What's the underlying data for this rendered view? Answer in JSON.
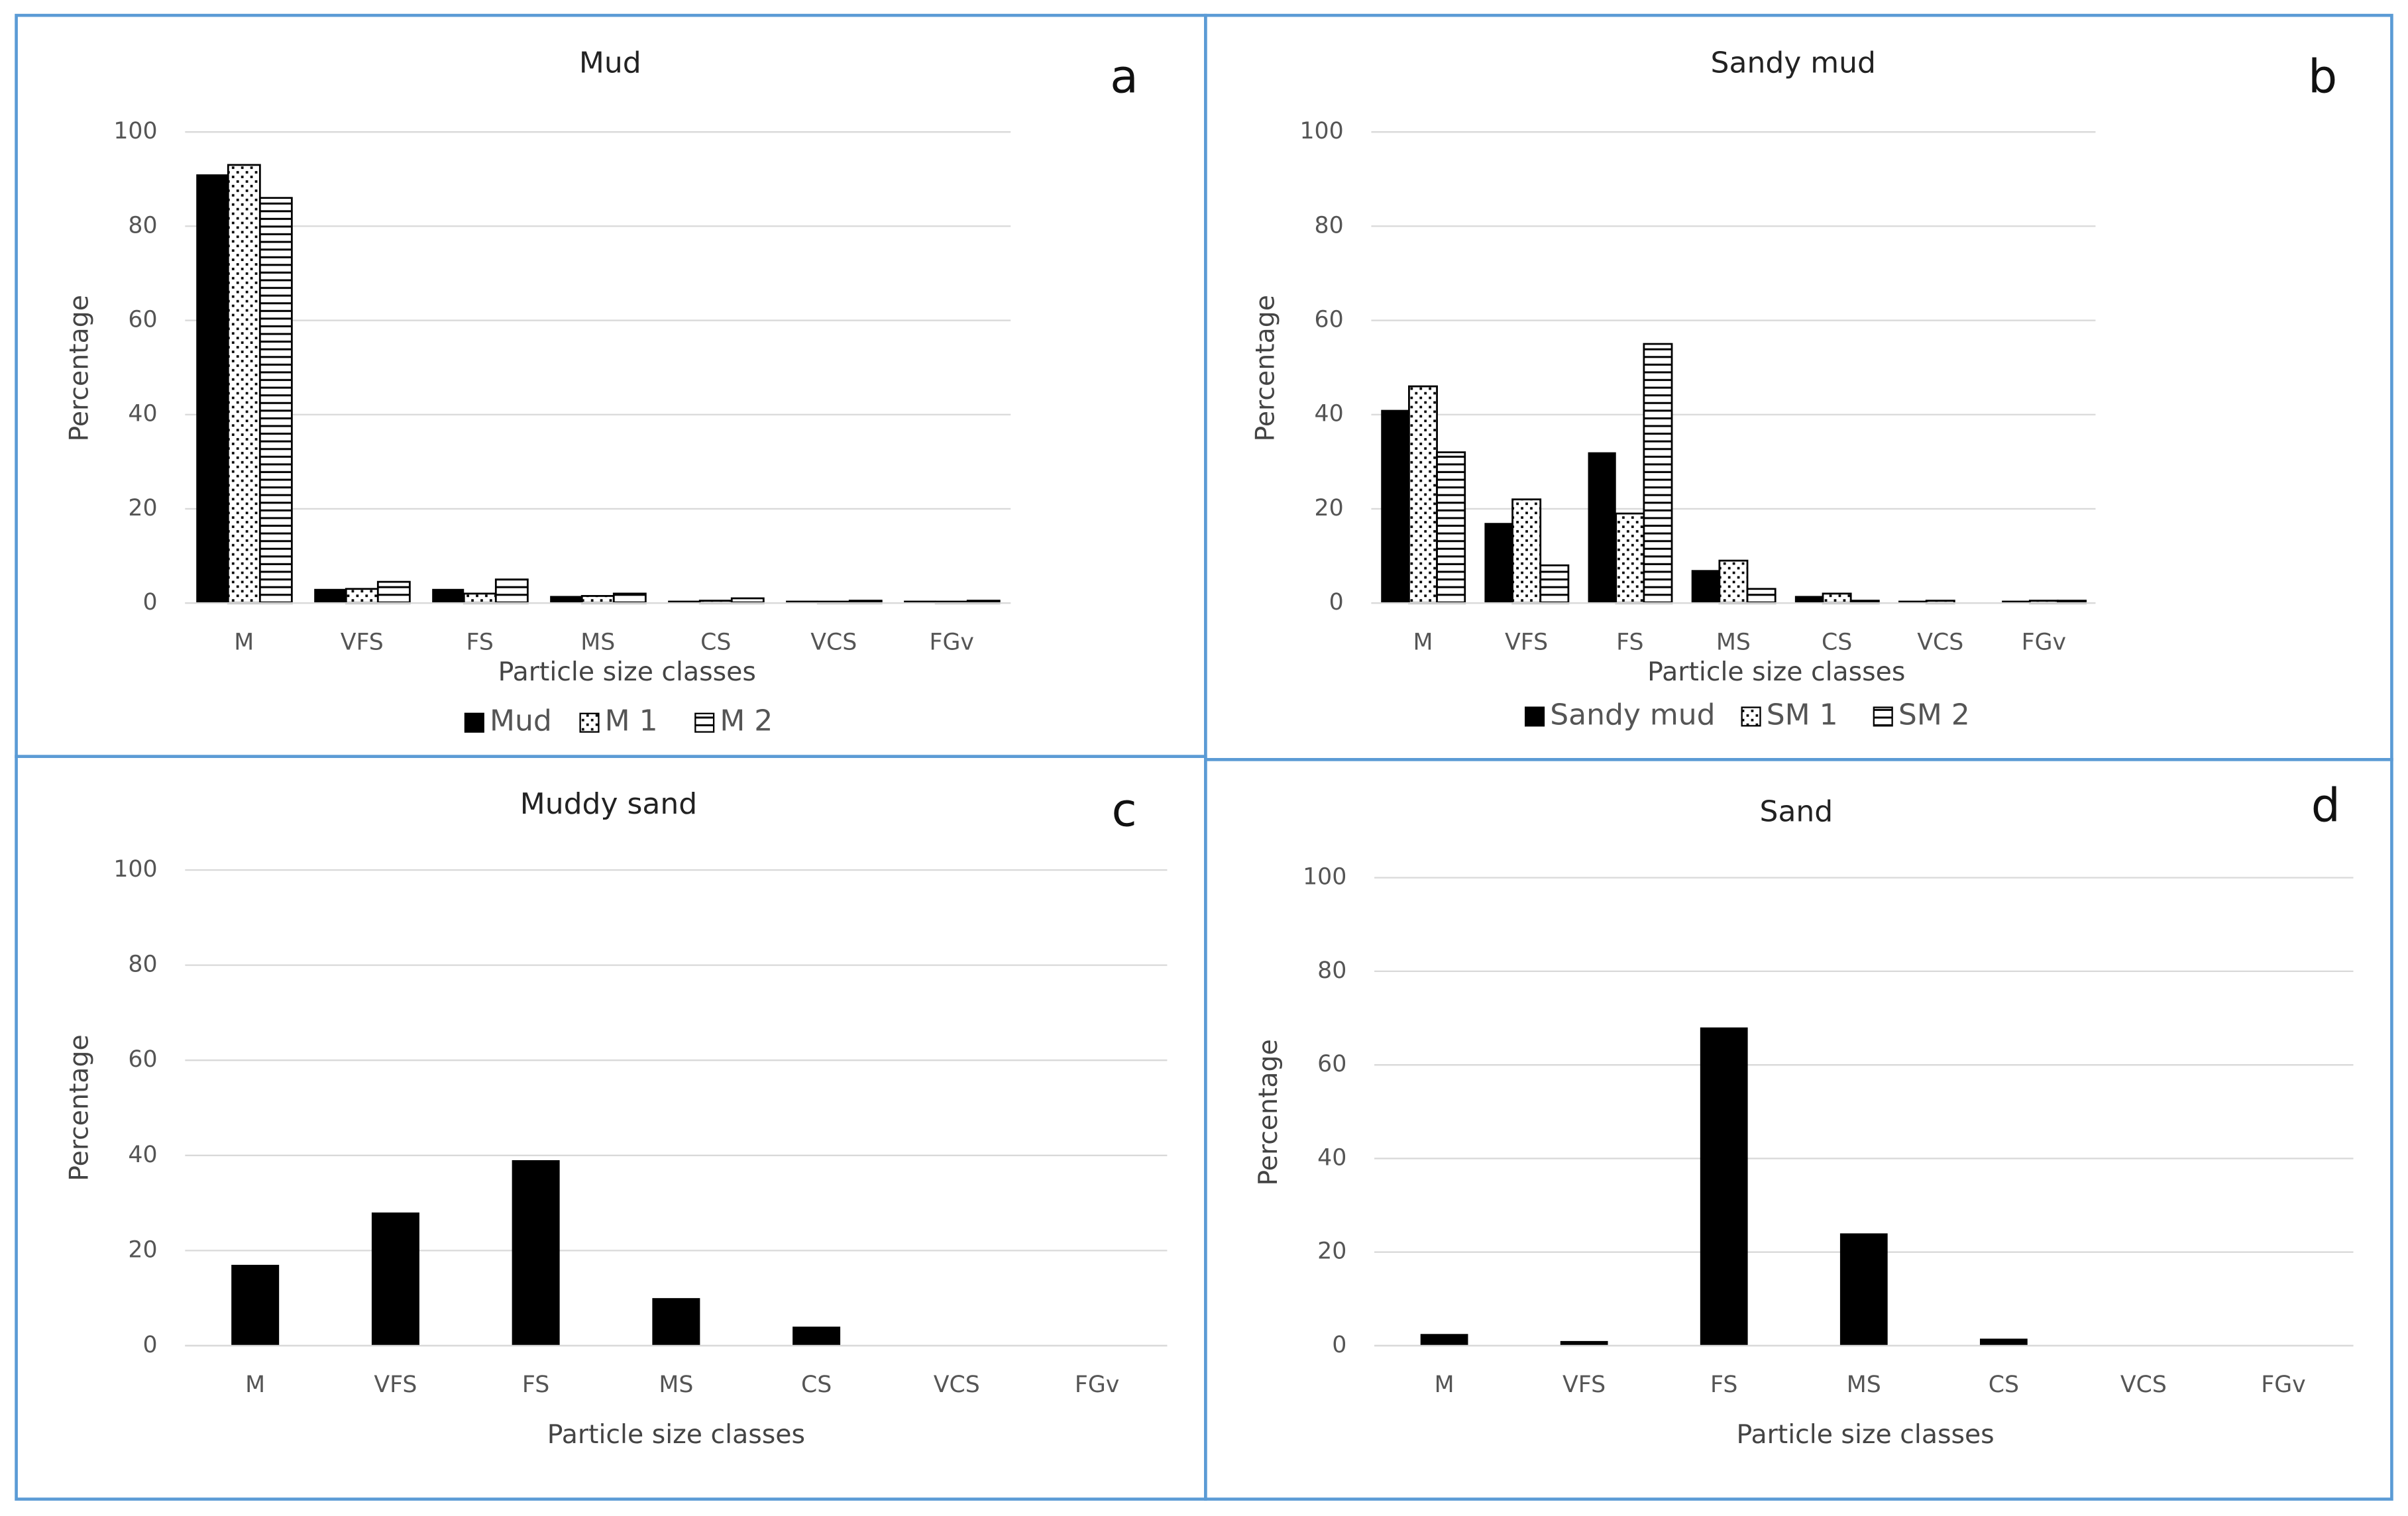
{
  "chart_data": [
    {
      "type": "bar",
      "title": "Mud",
      "label": "a",
      "ylabel": "Percentage",
      "xlabel": "Particle size classes",
      "categories": [
        "M",
        "VFS",
        "FS",
        "MS",
        "CS",
        "VCS",
        "FGv"
      ],
      "series": [
        {
          "name": "Mud",
          "color": "#000000",
          "pattern": "solid",
          "values": [
            91,
            3,
            3,
            1.5,
            0.5,
            0.5,
            0.5
          ]
        },
        {
          "name": "M 1",
          "color": "#000000",
          "pattern": "dots",
          "values": [
            93,
            3,
            2,
            1.5,
            0.5,
            0.3,
            0.3
          ]
        },
        {
          "name": "M 2",
          "color": "#000000",
          "pattern": "hlines",
          "values": [
            86,
            4.5,
            5,
            2,
            1,
            0.5,
            0.5
          ]
        }
      ],
      "ylim": [
        0,
        100
      ],
      "yticks": [
        0,
        20,
        40,
        60,
        80,
        100
      ],
      "grid": true
    },
    {
      "type": "bar",
      "title": "Sandy mud",
      "label": "b",
      "ylabel": "Percentage",
      "xlabel": "Particle size classes",
      "categories": [
        "M",
        "VFS",
        "FS",
        "MS",
        "CS",
        "VCS",
        "FGv"
      ],
      "series": [
        {
          "name": "Sandy mud",
          "color": "#000000",
          "pattern": "solid",
          "values": [
            41,
            17,
            32,
            7,
            1.5,
            0.5,
            0.5
          ]
        },
        {
          "name": "SM 1",
          "color": "#000000",
          "pattern": "dots",
          "values": [
            46,
            22,
            19,
            9,
            2,
            0.5,
            0.5
          ]
        },
        {
          "name": "SM 2",
          "color": "#000000",
          "pattern": "hlines",
          "values": [
            32,
            8,
            55,
            3,
            0.5,
            0,
            0.5
          ]
        }
      ],
      "ylim": [
        0,
        100
      ],
      "yticks": [
        0,
        20,
        40,
        60,
        80,
        100
      ],
      "grid": true
    },
    {
      "type": "bar",
      "title": "Muddy sand",
      "label": "c",
      "ylabel": "Percentage",
      "xlabel": "Particle size classes",
      "categories": [
        "M",
        "VFS",
        "FS",
        "MS",
        "CS",
        "VCS",
        "FGv"
      ],
      "values": [
        17,
        28,
        39,
        10,
        4,
        0,
        0
      ],
      "color": "#000000",
      "ylim": [
        0,
        100
      ],
      "yticks": [
        0,
        20,
        40,
        60,
        80,
        100
      ],
      "grid": true
    },
    {
      "type": "bar",
      "title": "Sand",
      "label": "d",
      "ylabel": "Percentage",
      "xlabel": "Particle size classes",
      "categories": [
        "M",
        "VFS",
        "FS",
        "MS",
        "CS",
        "VCS",
        "FGv"
      ],
      "values": [
        2.5,
        1,
        68,
        24,
        1.5,
        0,
        0
      ],
      "color": "#000000",
      "ylim": [
        0,
        100
      ],
      "yticks": [
        0,
        20,
        40,
        60,
        80,
        100
      ],
      "grid": true
    }
  ]
}
